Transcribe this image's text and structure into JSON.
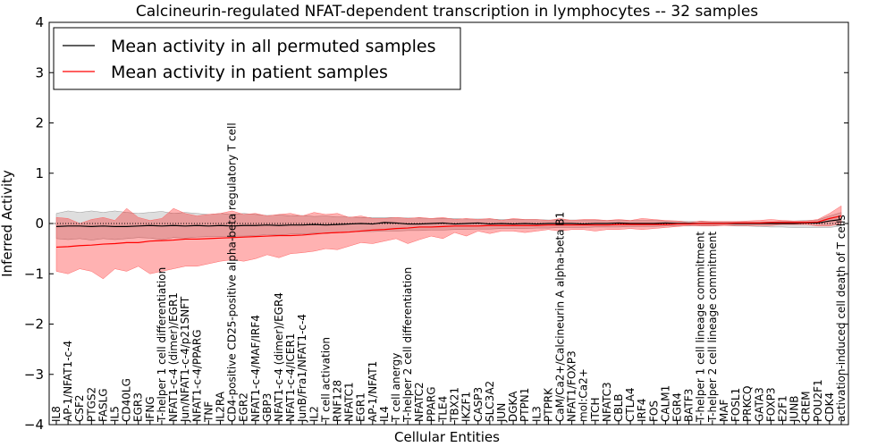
{
  "chart_data": {
    "type": "line",
    "title": "Calcineurin-regulated NFAT-dependent transcription in lymphocytes -- 32 samples",
    "xlabel": "Cellular Entities",
    "ylabel": "Inferred Activity",
    "ylim": [
      -4,
      4
    ],
    "yticks": [
      -4,
      -3,
      -2,
      -1,
      0,
      1,
      2,
      3,
      4
    ],
    "legend": {
      "position": "top-left",
      "entries": [
        "Mean activity in all permuted samples",
        "Mean activity in patient samples"
      ]
    },
    "categories": [
      "IL8",
      "AP-1/NFAT1-c-4",
      "CSF2",
      "PTGS2",
      "FASLG",
      "IL5",
      "CD40LG",
      "EGR3",
      "IFNG",
      "T-helper 1 cell differentiation",
      "NFAT1-c-4 (dimer)/EGR1",
      "Jun/NFAT1-c-4/p21SNFT",
      "NFAT1-c-4/PPARG",
      "TNF",
      "IL2RA",
      "CD4-positive CD25-positive alpha-beta regulatory T cell",
      "EGR2",
      "NFAT1-c-4/MAF/IRF4",
      "GBP3",
      "NFAT1-c-4 (dimer)/EGR4",
      "NFAT1-c-4/ICER1",
      "JunB/Fra1/NFAT1-c-4",
      "IL2",
      "T cell activation",
      "RNF128",
      "NFATC1",
      "EGR1",
      "AP-1/NFAT1",
      "IL4",
      "T cell anergy",
      "T-helper 2 cell differentiation",
      "NFATC2",
      "PPARG",
      "TLE4",
      "TBX21",
      "IKZF1",
      "CASP3",
      "SLC3A2",
      "JUN",
      "DGKA",
      "PTPN1",
      "IL3",
      "PTPRK",
      "CaM/Ca2+/Calcineurin A alpha-beta B1",
      "NFAT1/FOXP3",
      "mol:Ca2+",
      "ITCH",
      "NFATC3",
      "CBLB",
      "CTLA4",
      "IRF4",
      "FOS",
      "CALM1",
      "EGR4",
      "BATF3",
      "T-helper 1 cell lineage commitment",
      "T-helper 2 cell lineage commitment",
      "MAF",
      "FOSL1",
      "PRKCQ",
      "GATA3",
      "FOXP3",
      "E2F1",
      "JUNB",
      "CREM",
      "POU2F1",
      "CDK4",
      "activation-induced cell death of T cells"
    ],
    "series": [
      {
        "name": "Mean activity in all permuted samples",
        "color": "#000000",
        "values": [
          -0.06,
          -0.05,
          -0.05,
          -0.06,
          -0.05,
          -0.06,
          -0.06,
          -0.05,
          -0.04,
          -0.05,
          -0.04,
          -0.05,
          -0.04,
          -0.05,
          -0.04,
          -0.05,
          -0.04,
          -0.04,
          -0.03,
          -0.04,
          -0.03,
          -0.03,
          -0.02,
          -0.03,
          -0.02,
          -0.01,
          0.0,
          -0.01,
          0.02,
          0.01,
          -0.01,
          -0.01,
          0.0,
          0.01,
          -0.01,
          0.0,
          0.01,
          -0.01,
          0.0,
          -0.01,
          0.0,
          -0.01,
          0.0,
          0.0,
          0.0,
          -0.01,
          0.0,
          0.0,
          0.01,
          0.0,
          0.0,
          0.0,
          0.01,
          0.0,
          0.0,
          0.0,
          0.0,
          0.0,
          0.0,
          0.0,
          0.0,
          0.0,
          0.0,
          0.0,
          0.01,
          0.01,
          0.05,
          0.08
        ],
        "band_upper": [
          0.2,
          0.25,
          0.22,
          0.25,
          0.22,
          0.25,
          0.22,
          0.2,
          0.22,
          0.24,
          0.2,
          0.22,
          0.2,
          0.18,
          0.2,
          0.18,
          0.2,
          0.18,
          0.16,
          0.17,
          0.15,
          0.16,
          0.14,
          0.15,
          0.13,
          0.13,
          0.12,
          0.12,
          0.12,
          0.12,
          0.11,
          0.11,
          0.1,
          0.1,
          0.1,
          0.09,
          0.09,
          0.09,
          0.08,
          0.08,
          0.08,
          0.08,
          0.07,
          0.07,
          0.07,
          0.07,
          0.07,
          0.06,
          0.06,
          0.06,
          0.06,
          0.06,
          0.05,
          0.05,
          0.04,
          0.04,
          0.03,
          0.03,
          0.03,
          0.03,
          0.03,
          0.03,
          0.04,
          0.05,
          0.06,
          0.07,
          0.15,
          0.22
        ],
        "band_lower": [
          -0.3,
          -0.32,
          -0.3,
          -0.33,
          -0.3,
          -0.32,
          -0.3,
          -0.28,
          -0.29,
          -0.32,
          -0.28,
          -0.29,
          -0.27,
          -0.26,
          -0.26,
          -0.25,
          -0.25,
          -0.24,
          -0.22,
          -0.23,
          -0.21,
          -0.21,
          -0.19,
          -0.2,
          -0.18,
          -0.17,
          -0.16,
          -0.16,
          -0.15,
          -0.15,
          -0.14,
          -0.14,
          -0.13,
          -0.13,
          -0.12,
          -0.12,
          -0.11,
          -0.11,
          -0.1,
          -0.1,
          -0.1,
          -0.09,
          -0.09,
          -0.08,
          -0.08,
          -0.08,
          -0.07,
          -0.07,
          -0.07,
          -0.06,
          -0.06,
          -0.06,
          -0.05,
          -0.05,
          -0.05,
          -0.04,
          -0.04,
          -0.04,
          -0.05,
          -0.05,
          -0.06,
          -0.07,
          -0.07,
          -0.08,
          -0.08,
          -0.08,
          -0.08,
          -0.05
        ]
      },
      {
        "name": "Mean activity in patient samples",
        "color": "#ff0000",
        "values": [
          -0.47,
          -0.46,
          -0.44,
          -0.43,
          -0.41,
          -0.4,
          -0.38,
          -0.38,
          -0.35,
          -0.34,
          -0.33,
          -0.31,
          -0.31,
          -0.3,
          -0.29,
          -0.28,
          -0.27,
          -0.26,
          -0.25,
          -0.24,
          -0.24,
          -0.23,
          -0.21,
          -0.19,
          -0.18,
          -0.17,
          -0.15,
          -0.13,
          -0.12,
          -0.1,
          -0.09,
          -0.07,
          -0.07,
          -0.06,
          -0.05,
          -0.05,
          -0.05,
          -0.04,
          -0.04,
          -0.04,
          -0.04,
          -0.04,
          -0.03,
          -0.03,
          -0.03,
          -0.03,
          -0.03,
          -0.03,
          -0.02,
          -0.02,
          -0.02,
          -0.02,
          -0.02,
          -0.01,
          -0.01,
          0.0,
          0.0,
          0.0,
          0.01,
          0.01,
          0.01,
          0.02,
          0.02,
          0.02,
          0.02,
          0.03,
          0.1,
          0.15
        ],
        "band_upper": [
          0.12,
          0.1,
          0.0,
          0.08,
          0.12,
          0.06,
          0.3,
          0.12,
          0.06,
          0.1,
          0.3,
          0.2,
          0.15,
          0.18,
          0.2,
          0.25,
          0.18,
          0.2,
          0.15,
          0.18,
          0.2,
          0.15,
          0.22,
          0.18,
          0.2,
          0.12,
          0.15,
          0.1,
          0.1,
          0.12,
          0.1,
          0.12,
          0.1,
          0.12,
          0.08,
          0.1,
          0.08,
          0.1,
          0.06,
          0.1,
          0.08,
          0.08,
          0.06,
          0.1,
          0.06,
          0.08,
          0.08,
          0.06,
          0.08,
          0.06,
          0.1,
          0.08,
          0.06,
          0.05,
          0.02,
          0.05,
          0.04,
          0.04,
          0.04,
          0.05,
          0.06,
          0.08,
          0.06,
          0.05,
          0.05,
          0.08,
          0.2,
          0.35
        ],
        "band_lower": [
          -0.95,
          -1.0,
          -0.9,
          -0.95,
          -1.1,
          -0.9,
          -0.95,
          -0.85,
          -1.0,
          -0.95,
          -0.9,
          -0.85,
          -0.85,
          -0.8,
          -0.75,
          -0.72,
          -0.75,
          -0.7,
          -0.62,
          -0.68,
          -0.6,
          -0.58,
          -0.55,
          -0.5,
          -0.52,
          -0.45,
          -0.38,
          -0.4,
          -0.35,
          -0.3,
          -0.4,
          -0.32,
          -0.25,
          -0.3,
          -0.18,
          -0.25,
          -0.15,
          -0.2,
          -0.15,
          -0.15,
          -0.18,
          -0.15,
          -0.12,
          -0.15,
          -0.12,
          -0.12,
          -0.15,
          -0.12,
          -0.12,
          -0.1,
          -0.12,
          -0.1,
          -0.08,
          -0.06,
          -0.04,
          -0.05,
          -0.05,
          -0.04,
          -0.04,
          -0.04,
          -0.04,
          -0.04,
          -0.02,
          -0.02,
          -0.02,
          -0.05,
          -0.05,
          0.0
        ]
      }
    ]
  }
}
